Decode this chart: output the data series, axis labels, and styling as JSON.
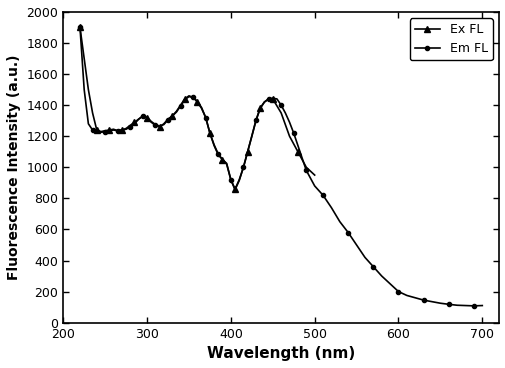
{
  "title": "",
  "xlabel": "Wavelength (nm)",
  "ylabel": "Fluorescence Intensity (a.u.)",
  "xlim": [
    200,
    720
  ],
  "ylim": [
    0,
    2000
  ],
  "yticks": [
    0,
    200,
    400,
    600,
    800,
    1000,
    1200,
    1400,
    1600,
    1800,
    2000
  ],
  "xticks": [
    200,
    300,
    400,
    500,
    600,
    700
  ],
  "legend_labels": [
    "Ex FL",
    "Em FL"
  ],
  "line_color": "#000000",
  "background_color": "#ffffff",
  "ex_fl": {
    "x": [
      220,
      230,
      235,
      240,
      245,
      250,
      255,
      260,
      265,
      270,
      275,
      280,
      285,
      290,
      295,
      300,
      305,
      310,
      315,
      320,
      325,
      330,
      335,
      340,
      345,
      350,
      355,
      360,
      365,
      370,
      375,
      380,
      385,
      390,
      395,
      400,
      405,
      410,
      415,
      420,
      425,
      430,
      435,
      440,
      445,
      450,
      460,
      470,
      480,
      490,
      500
    ],
    "y": [
      1900,
      1500,
      1350,
      1240,
      1230,
      1235,
      1240,
      1245,
      1235,
      1240,
      1250,
      1270,
      1290,
      1310,
      1330,
      1320,
      1290,
      1270,
      1260,
      1280,
      1310,
      1330,
      1360,
      1400,
      1440,
      1460,
      1450,
      1420,
      1380,
      1320,
      1220,
      1140,
      1080,
      1050,
      1020,
      920,
      860,
      920,
      1000,
      1100,
      1200,
      1300,
      1380,
      1420,
      1440,
      1440,
      1350,
      1200,
      1100,
      1000,
      950
    ]
  },
  "em_fl": {
    "x": [
      220,
      225,
      230,
      235,
      240,
      245,
      250,
      255,
      260,
      265,
      270,
      275,
      280,
      285,
      290,
      295,
      300,
      305,
      310,
      315,
      320,
      325,
      330,
      335,
      340,
      345,
      350,
      355,
      360,
      365,
      370,
      375,
      380,
      385,
      390,
      395,
      400,
      405,
      410,
      415,
      420,
      425,
      430,
      435,
      440,
      445,
      450,
      455,
      460,
      465,
      470,
      475,
      480,
      485,
      490,
      495,
      500,
      510,
      520,
      530,
      540,
      550,
      560,
      570,
      580,
      590,
      600,
      610,
      620,
      630,
      640,
      650,
      660,
      670,
      680,
      690,
      700
    ],
    "y": [
      1900,
      1500,
      1280,
      1240,
      1230,
      1225,
      1230,
      1235,
      1240,
      1235,
      1240,
      1245,
      1260,
      1280,
      1310,
      1330,
      1320,
      1295,
      1275,
      1265,
      1275,
      1305,
      1330,
      1355,
      1395,
      1435,
      1455,
      1450,
      1425,
      1385,
      1320,
      1220,
      1145,
      1085,
      1050,
      1025,
      920,
      855,
      915,
      1000,
      1100,
      1200,
      1305,
      1380,
      1420,
      1440,
      1445,
      1440,
      1400,
      1350,
      1290,
      1220,
      1140,
      1060,
      980,
      930,
      880,
      820,
      740,
      650,
      580,
      500,
      420,
      360,
      300,
      250,
      200,
      175,
      160,
      145,
      135,
      125,
      118,
      112,
      110,
      108,
      110
    ]
  }
}
